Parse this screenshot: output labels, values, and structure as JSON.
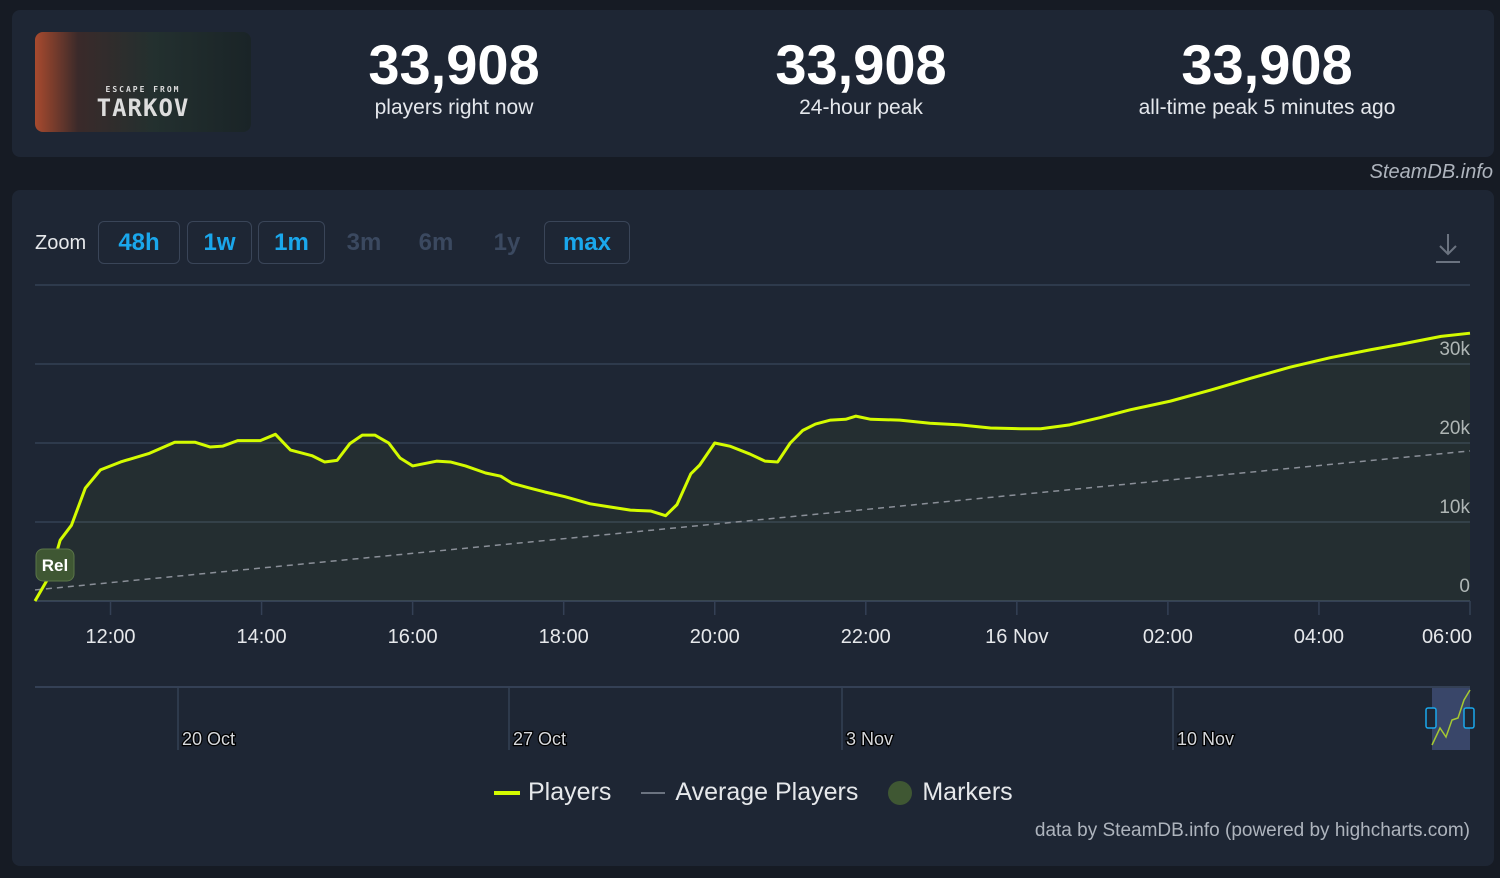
{
  "header": {
    "game_cover": {
      "alt_text_logo": "ESCAPE FROM TARKOV"
    },
    "stats": [
      {
        "value": "33,908",
        "label": "players right now"
      },
      {
        "value": "33,908",
        "label": "24-hour peak"
      },
      {
        "value": "33,908",
        "label": "all-time peak 5 minutes ago"
      }
    ]
  },
  "credit": "SteamDB.info",
  "zoom": {
    "label": "Zoom",
    "buttons": [
      {
        "label": "48h",
        "enabled": true
      },
      {
        "label": "1w",
        "enabled": true
      },
      {
        "label": "1m",
        "enabled": true
      },
      {
        "label": "3m",
        "enabled": false
      },
      {
        "label": "6m",
        "enabled": false
      },
      {
        "label": "1y",
        "enabled": false
      },
      {
        "label": "max",
        "enabled": true
      }
    ]
  },
  "download_icon": "download-icon",
  "colors": {
    "players": "#d4fb00",
    "average": "#8a8f98",
    "markers": "#3f5733",
    "accent": "#1aa7ec"
  },
  "chart_data": {
    "type": "line",
    "xlim": [
      "15 Nov 11:00",
      "16 Nov 06:00"
    ],
    "ylim": [
      0,
      40000
    ],
    "y_ticks": [
      {
        "v": 0,
        "label": "0"
      },
      {
        "v": 10000,
        "label": "10k"
      },
      {
        "v": 20000,
        "label": "20k"
      },
      {
        "v": 30000,
        "label": "30k"
      }
    ],
    "x_ticks": [
      {
        "t": "15 Nov 12:00",
        "label": "12:00"
      },
      {
        "t": "15 Nov 14:00",
        "label": "14:00"
      },
      {
        "t": "15 Nov 16:00",
        "label": "16:00"
      },
      {
        "t": "15 Nov 18:00",
        "label": "18:00"
      },
      {
        "t": "15 Nov 20:00",
        "label": "20:00"
      },
      {
        "t": "15 Nov 22:00",
        "label": "22:00"
      },
      {
        "t": "16 Nov 00:00",
        "label": "16 Nov"
      },
      {
        "t": "16 Nov 02:00",
        "label": "02:00"
      },
      {
        "t": "16 Nov 04:00",
        "label": "04:00"
      },
      {
        "t": "16 Nov 06:00",
        "label": "06:00"
      }
    ],
    "grid": true,
    "series": [
      {
        "name": "Players",
        "style": "solid",
        "points": [
          [
            "15 Nov 11:00",
            0
          ],
          [
            "15 Nov 11:12",
            3300
          ],
          [
            "15 Nov 11:20",
            7700
          ],
          [
            "15 Nov 11:29",
            9600
          ],
          [
            "15 Nov 11:40",
            14300
          ],
          [
            "15 Nov 11:52",
            16600
          ],
          [
            "15 Nov 12:08",
            17600
          ],
          [
            "15 Nov 12:31",
            18700
          ],
          [
            "15 Nov 12:51",
            20100
          ],
          [
            "15 Nov 13:07",
            20100
          ],
          [
            "15 Nov 13:19",
            19500
          ],
          [
            "15 Nov 13:29",
            19600
          ],
          [
            "15 Nov 13:41",
            20300
          ],
          [
            "15 Nov 13:59",
            20300
          ],
          [
            "15 Nov 14:11",
            21100
          ],
          [
            "15 Nov 14:23",
            19100
          ],
          [
            "15 Nov 14:40",
            18400
          ],
          [
            "15 Nov 14:50",
            17600
          ],
          [
            "15 Nov 15:00",
            17800
          ],
          [
            "15 Nov 15:10",
            19900
          ],
          [
            "15 Nov 15:20",
            21000
          ],
          [
            "15 Nov 15:30",
            21000
          ],
          [
            "15 Nov 15:41",
            20000
          ],
          [
            "15 Nov 15:50",
            18100
          ],
          [
            "15 Nov 16:00",
            17100
          ],
          [
            "15 Nov 16:19",
            17700
          ],
          [
            "15 Nov 16:30",
            17600
          ],
          [
            "15 Nov 16:42",
            17100
          ],
          [
            "15 Nov 16:58",
            16200
          ],
          [
            "15 Nov 17:10",
            15800
          ],
          [
            "15 Nov 17:19",
            14900
          ],
          [
            "15 Nov 17:33",
            14300
          ],
          [
            "15 Nov 17:45",
            13800
          ],
          [
            "15 Nov 18:01",
            13200
          ],
          [
            "15 Nov 18:21",
            12300
          ],
          [
            "15 Nov 18:37",
            11900
          ],
          [
            "15 Nov 18:53",
            11500
          ],
          [
            "15 Nov 19:09",
            11400
          ],
          [
            "15 Nov 19:21",
            10800
          ],
          [
            "15 Nov 19:30",
            12200
          ],
          [
            "15 Nov 19:41",
            16100
          ],
          [
            "15 Nov 19:48",
            17200
          ],
          [
            "15 Nov 20:00",
            20000
          ],
          [
            "15 Nov 20:12",
            19600
          ],
          [
            "15 Nov 20:28",
            18600
          ],
          [
            "15 Nov 20:40",
            17700
          ],
          [
            "15 Nov 20:50",
            17600
          ],
          [
            "15 Nov 21:00",
            20000
          ],
          [
            "15 Nov 21:10",
            21600
          ],
          [
            "15 Nov 21:20",
            22400
          ],
          [
            "15 Nov 21:32",
            22900
          ],
          [
            "15 Nov 21:44",
            23000
          ],
          [
            "15 Nov 21:52",
            23400
          ],
          [
            "15 Nov 22:04",
            23000
          ],
          [
            "15 Nov 22:27",
            22900
          ],
          [
            "15 Nov 22:51",
            22500
          ],
          [
            "15 Nov 23:15",
            22300
          ],
          [
            "15 Nov 23:39",
            21900
          ],
          [
            "16 Nov 00:03",
            21800
          ],
          [
            "16 Nov 00:19",
            21800
          ],
          [
            "16 Nov 00:42",
            22300
          ],
          [
            "16 Nov 01:06",
            23200
          ],
          [
            "16 Nov 01:30",
            24200
          ],
          [
            "16 Nov 02:02",
            25300
          ],
          [
            "16 Nov 02:34",
            26700
          ],
          [
            "16 Nov 03:06",
            28200
          ],
          [
            "16 Nov 03:37",
            29600
          ],
          [
            "16 Nov 04:09",
            30800
          ],
          [
            "16 Nov 04:41",
            31800
          ],
          [
            "16 Nov 05:05",
            32500
          ],
          [
            "16 Nov 05:37",
            33500
          ],
          [
            "16 Nov 06:00",
            33900
          ]
        ]
      },
      {
        "name": "Average Players",
        "style": "dashed",
        "points": [
          [
            "15 Nov 11:00",
            1400
          ],
          [
            "16 Nov 06:00",
            19000
          ]
        ]
      }
    ],
    "markers": [
      {
        "t": "15 Nov 11:00",
        "label": "Rel"
      }
    ],
    "navigator": {
      "ticks": [
        "20 Oct",
        "27 Oct",
        "3 Nov",
        "10 Nov"
      ]
    },
    "legend": {
      "position": "bottom",
      "items": [
        "Players",
        "Average Players",
        "Markers"
      ]
    }
  },
  "footer": "data by SteamDB.info (powered by highcharts.com)"
}
